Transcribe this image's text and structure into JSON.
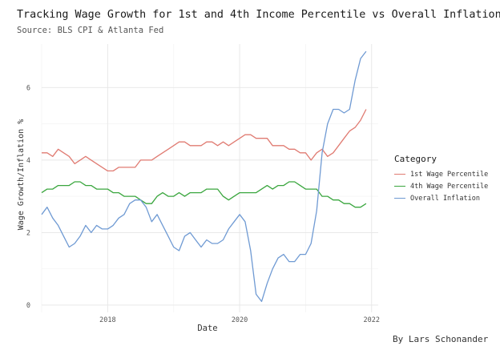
{
  "chart_data": {
    "type": "line",
    "title": "Tracking Wage Growth for 1st and 4th Income Percentile vs Overall Inflation",
    "subtitle": "Source: BLS CPI & Atlanta Fed",
    "xlabel": "Date",
    "ylabel": "Wage Growth/Inflation %",
    "xlim": [
      2017.0,
      2022.1
    ],
    "ylim": [
      -0.2,
      7.2
    ],
    "x_ticks": [
      2018,
      2020,
      2022
    ],
    "x_tick_labels": [
      "2018",
      "2020",
      "2022"
    ],
    "y_ticks": [
      0,
      2,
      4,
      6
    ],
    "y_tick_labels": [
      "0",
      "2",
      "4",
      "6"
    ],
    "grid": true,
    "legend_title": "Category",
    "legend_position": "right",
    "credit": "By Lars Schonander",
    "series": [
      {
        "name": "1st Wage Percentile",
        "color": "#e07b72",
        "x": [
          2017.0,
          2017.083,
          2017.167,
          2017.25,
          2017.333,
          2017.417,
          2017.5,
          2017.583,
          2017.667,
          2017.75,
          2017.833,
          2017.917,
          2018.0,
          2018.083,
          2018.167,
          2018.25,
          2018.333,
          2018.417,
          2018.5,
          2018.583,
          2018.667,
          2018.75,
          2018.833,
          2018.917,
          2019.0,
          2019.083,
          2019.167,
          2019.25,
          2019.333,
          2019.417,
          2019.5,
          2019.583,
          2019.667,
          2019.75,
          2019.833,
          2019.917,
          2020.0,
          2020.083,
          2020.167,
          2020.25,
          2020.333,
          2020.417,
          2020.5,
          2020.583,
          2020.667,
          2020.75,
          2020.833,
          2020.917,
          2021.0,
          2021.083,
          2021.167,
          2021.25,
          2021.333,
          2021.417,
          2021.5,
          2021.583,
          2021.667,
          2021.75,
          2021.833,
          2021.917
        ],
        "values": [
          4.2,
          4.2,
          4.1,
          4.3,
          4.2,
          4.1,
          3.9,
          4.0,
          4.1,
          4.0,
          3.9,
          3.8,
          3.7,
          3.7,
          3.8,
          3.8,
          3.8,
          3.8,
          4.0,
          4.0,
          4.0,
          4.1,
          4.2,
          4.3,
          4.4,
          4.5,
          4.5,
          4.4,
          4.4,
          4.4,
          4.5,
          4.5,
          4.4,
          4.5,
          4.4,
          4.5,
          4.6,
          4.7,
          4.7,
          4.6,
          4.6,
          4.6,
          4.4,
          4.4,
          4.4,
          4.3,
          4.3,
          4.2,
          4.2,
          4.0,
          4.2,
          4.3,
          4.1,
          4.2,
          4.4,
          4.6,
          4.8,
          4.9,
          5.1,
          5.4
        ]
      },
      {
        "name": "4th Wage Percentile",
        "color": "#3aa63e",
        "x": [
          2017.0,
          2017.083,
          2017.167,
          2017.25,
          2017.333,
          2017.417,
          2017.5,
          2017.583,
          2017.667,
          2017.75,
          2017.833,
          2017.917,
          2018.0,
          2018.083,
          2018.167,
          2018.25,
          2018.333,
          2018.417,
          2018.5,
          2018.583,
          2018.667,
          2018.75,
          2018.833,
          2018.917,
          2019.0,
          2019.083,
          2019.167,
          2019.25,
          2019.333,
          2019.417,
          2019.5,
          2019.583,
          2019.667,
          2019.75,
          2019.833,
          2019.917,
          2020.0,
          2020.083,
          2020.167,
          2020.25,
          2020.333,
          2020.417,
          2020.5,
          2020.583,
          2020.667,
          2020.75,
          2020.833,
          2020.917,
          2021.0,
          2021.083,
          2021.167,
          2021.25,
          2021.333,
          2021.417,
          2021.5,
          2021.583,
          2021.667,
          2021.75,
          2021.833,
          2021.917
        ],
        "values": [
          3.1,
          3.2,
          3.2,
          3.3,
          3.3,
          3.3,
          3.4,
          3.4,
          3.3,
          3.3,
          3.2,
          3.2,
          3.2,
          3.1,
          3.1,
          3.0,
          3.0,
          3.0,
          2.9,
          2.8,
          2.8,
          3.0,
          3.1,
          3.0,
          3.0,
          3.1,
          3.0,
          3.1,
          3.1,
          3.1,
          3.2,
          3.2,
          3.2,
          3.0,
          2.9,
          3.0,
          3.1,
          3.1,
          3.1,
          3.1,
          3.2,
          3.3,
          3.2,
          3.3,
          3.3,
          3.4,
          3.4,
          3.3,
          3.2,
          3.2,
          3.2,
          3.0,
          3.0,
          2.9,
          2.9,
          2.8,
          2.8,
          2.7,
          2.7,
          2.8
        ]
      },
      {
        "name": "Overall Inflation",
        "color": "#6f9ad3",
        "x": [
          2017.0,
          2017.083,
          2017.167,
          2017.25,
          2017.333,
          2017.417,
          2017.5,
          2017.583,
          2017.667,
          2017.75,
          2017.833,
          2017.917,
          2018.0,
          2018.083,
          2018.167,
          2018.25,
          2018.333,
          2018.417,
          2018.5,
          2018.583,
          2018.667,
          2018.75,
          2018.833,
          2018.917,
          2019.0,
          2019.083,
          2019.167,
          2019.25,
          2019.333,
          2019.417,
          2019.5,
          2019.583,
          2019.667,
          2019.75,
          2019.833,
          2019.917,
          2020.0,
          2020.083,
          2020.167,
          2020.25,
          2020.333,
          2020.417,
          2020.5,
          2020.583,
          2020.667,
          2020.75,
          2020.833,
          2020.917,
          2021.0,
          2021.083,
          2021.167,
          2021.25,
          2021.333,
          2021.417,
          2021.5,
          2021.583,
          2021.667,
          2021.75,
          2021.833,
          2021.917
        ],
        "values": [
          2.5,
          2.7,
          2.4,
          2.2,
          1.9,
          1.6,
          1.7,
          1.9,
          2.2,
          2.0,
          2.2,
          2.1,
          2.1,
          2.2,
          2.4,
          2.5,
          2.8,
          2.9,
          2.9,
          2.7,
          2.3,
          2.5,
          2.2,
          1.9,
          1.6,
          1.5,
          1.9,
          2.0,
          1.8,
          1.6,
          1.8,
          1.7,
          1.7,
          1.8,
          2.1,
          2.3,
          2.5,
          2.3,
          1.5,
          0.3,
          0.1,
          0.6,
          1.0,
          1.3,
          1.4,
          1.2,
          1.2,
          1.4,
          1.4,
          1.7,
          2.6,
          4.2,
          5.0,
          5.4,
          5.4,
          5.3,
          5.4,
          6.2,
          6.8,
          7.0
        ]
      }
    ]
  }
}
